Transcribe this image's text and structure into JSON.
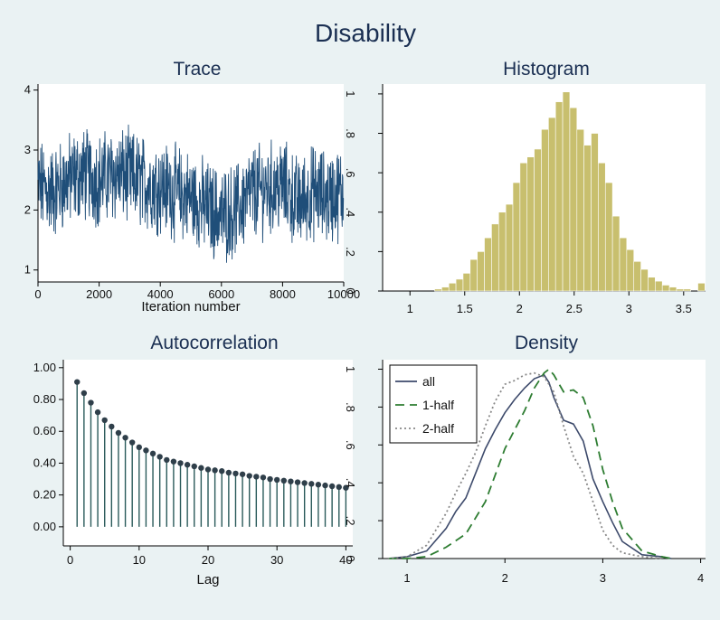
{
  "title": "Disability",
  "chart_data": [
    {
      "type": "line",
      "title": "Trace",
      "xlabel": "Iteration number",
      "ylabel": "",
      "xlim": [
        0,
        10000
      ],
      "ylim": [
        0.8,
        4.1
      ],
      "xticks": [
        0,
        2000,
        4000,
        6000,
        8000,
        10000
      ],
      "xtick_labels": [
        "0",
        "2000",
        "4000",
        "6000",
        "8000",
        "10000"
      ],
      "yticks": [
        1,
        2,
        3,
        4
      ],
      "ytick_labels": [
        "1",
        "2",
        "3",
        "4"
      ],
      "color": "#1f4e79",
      "series": [
        {
          "x": [
            0,
            500,
            1000,
            1500,
            2000,
            2500,
            3000,
            3500,
            4000,
            4500,
            5000,
            5500,
            6000,
            6500,
            7000,
            7500,
            8000,
            8500,
            9000,
            9500,
            10000
          ],
          "values": [
            2.4,
            2.3,
            2.5,
            2.6,
            2.5,
            2.6,
            2.55,
            2.45,
            2.4,
            2.3,
            2.2,
            2.05,
            1.9,
            2.0,
            2.3,
            2.35,
            2.4,
            2.1,
            2.3,
            2.2,
            2.3
          ]
        }
      ],
      "grid": false
    },
    {
      "type": "bar",
      "title": "Histogram",
      "xlim": [
        0.75,
        3.7
      ],
      "ylim": [
        0,
        1.05
      ],
      "xticks": [
        1,
        1.5,
        2,
        2.5,
        3,
        3.5
      ],
      "xtick_labels": [
        "1",
        "1.5",
        "2",
        "2.5",
        "3",
        "3.5"
      ],
      "yticks": [
        0,
        0.2,
        0.4,
        0.6,
        0.8,
        1
      ],
      "ytick_labels": [
        "0",
        ".2",
        ".4",
        ".6",
        ".8",
        "1"
      ],
      "color": "#c8bf6e",
      "bin_width": 0.065,
      "bin_starts": [
        0.9,
        0.965,
        1.03,
        1.095,
        1.16,
        1.225,
        1.29,
        1.355,
        1.42,
        1.485,
        1.55,
        1.615,
        1.68,
        1.745,
        1.81,
        1.875,
        1.94,
        2.005,
        2.07,
        2.135,
        2.2,
        2.265,
        2.33,
        2.395,
        2.46,
        2.525,
        2.59,
        2.655,
        2.72,
        2.785,
        2.85,
        2.915,
        2.98,
        3.045,
        3.11,
        3.175,
        3.24,
        3.305,
        3.37,
        3.435,
        3.5,
        3.565,
        3.63
      ],
      "values": [
        0.0,
        0.0,
        0.0,
        0.0,
        0.0,
        0.01,
        0.02,
        0.04,
        0.06,
        0.09,
        0.16,
        0.2,
        0.27,
        0.34,
        0.4,
        0.44,
        0.55,
        0.65,
        0.68,
        0.72,
        0.82,
        0.88,
        0.96,
        1.01,
        0.93,
        0.82,
        0.74,
        0.8,
        0.65,
        0.55,
        0.38,
        0.27,
        0.21,
        0.15,
        0.11,
        0.07,
        0.05,
        0.03,
        0.02,
        0.01,
        0.01,
        0.0,
        0.04
      ],
      "grid": false
    },
    {
      "type": "scatter",
      "title": "Autocorrelation",
      "xlabel": "Lag",
      "xlim": [
        -1,
        41
      ],
      "ylim": [
        -0.12,
        1.05
      ],
      "xticks": [
        0,
        10,
        20,
        30,
        40
      ],
      "xtick_labels": [
        "0",
        "10",
        "20",
        "30",
        "40"
      ],
      "yticks": [
        0,
        0.2,
        0.4,
        0.6,
        0.8,
        1.0
      ],
      "ytick_labels": [
        "0.00",
        "0.20",
        "0.40",
        "0.60",
        "0.80",
        "1.00"
      ],
      "color": "#2a5a5a",
      "x": [
        1,
        2,
        3,
        4,
        5,
        6,
        7,
        8,
        9,
        10,
        11,
        12,
        13,
        14,
        15,
        16,
        17,
        18,
        19,
        20,
        21,
        22,
        23,
        24,
        25,
        26,
        27,
        28,
        29,
        30,
        31,
        32,
        33,
        34,
        35,
        36,
        37,
        38,
        39,
        40
      ],
      "values": [
        0.91,
        0.84,
        0.78,
        0.72,
        0.67,
        0.63,
        0.59,
        0.56,
        0.53,
        0.5,
        0.48,
        0.46,
        0.44,
        0.42,
        0.41,
        0.4,
        0.39,
        0.38,
        0.37,
        0.36,
        0.355,
        0.35,
        0.34,
        0.335,
        0.33,
        0.32,
        0.315,
        0.31,
        0.3,
        0.295,
        0.29,
        0.285,
        0.28,
        0.275,
        0.27,
        0.265,
        0.26,
        0.255,
        0.25,
        0.245
      ],
      "grid": false
    },
    {
      "type": "line",
      "title": "Density",
      "xlim": [
        0.75,
        4.05
      ],
      "ylim": [
        0,
        1.05
      ],
      "xticks": [
        1,
        2,
        3,
        4
      ],
      "xtick_labels": [
        "1",
        "2",
        "3",
        "4"
      ],
      "yticks": [
        0,
        0.2,
        0.4,
        0.6,
        0.8,
        1
      ],
      "ytick_labels": [
        "0",
        ".2",
        ".4",
        ".6",
        ".8",
        "1"
      ],
      "legend": "top-left",
      "series": [
        {
          "name": "all",
          "color": "#3d4a6b",
          "dash": "",
          "x": [
            0.8,
            1.0,
            1.2,
            1.4,
            1.5,
            1.6,
            1.7,
            1.8,
            1.9,
            2.0,
            2.1,
            2.2,
            2.3,
            2.4,
            2.45,
            2.5,
            2.6,
            2.7,
            2.8,
            2.9,
            3.0,
            3.1,
            3.2,
            3.4,
            3.6,
            3.7
          ],
          "values": [
            0.0,
            0.01,
            0.04,
            0.16,
            0.25,
            0.32,
            0.45,
            0.58,
            0.68,
            0.77,
            0.84,
            0.9,
            0.95,
            0.97,
            0.93,
            0.85,
            0.73,
            0.71,
            0.62,
            0.42,
            0.3,
            0.19,
            0.09,
            0.02,
            0.01,
            0.0
          ]
        },
        {
          "name": "1-half",
          "color": "#2e7d32",
          "dash": "10,6",
          "x": [
            0.8,
            1.0,
            1.2,
            1.4,
            1.6,
            1.8,
            1.9,
            2.0,
            2.1,
            2.2,
            2.3,
            2.4,
            2.45,
            2.5,
            2.6,
            2.7,
            2.8,
            2.9,
            3.0,
            3.1,
            3.2,
            3.4,
            3.6,
            3.7
          ],
          "values": [
            0.0,
            0.0,
            0.01,
            0.06,
            0.13,
            0.3,
            0.44,
            0.58,
            0.68,
            0.78,
            0.9,
            0.98,
            1.0,
            0.97,
            0.88,
            0.89,
            0.85,
            0.7,
            0.47,
            0.3,
            0.16,
            0.04,
            0.01,
            0.0
          ]
        },
        {
          "name": "2-half",
          "color": "#888888",
          "dash": "2,3",
          "x": [
            0.8,
            1.0,
            1.2,
            1.4,
            1.5,
            1.6,
            1.7,
            1.8,
            1.9,
            2.0,
            2.1,
            2.2,
            2.3,
            2.4,
            2.5,
            2.6,
            2.7,
            2.8,
            2.9,
            3.0,
            3.1,
            3.2,
            3.4,
            3.6
          ],
          "values": [
            0.0,
            0.01,
            0.07,
            0.24,
            0.35,
            0.45,
            0.56,
            0.7,
            0.83,
            0.92,
            0.94,
            0.97,
            0.98,
            0.96,
            0.88,
            0.7,
            0.54,
            0.45,
            0.3,
            0.15,
            0.07,
            0.03,
            0.01,
            0.0
          ]
        }
      ],
      "grid": false
    }
  ]
}
